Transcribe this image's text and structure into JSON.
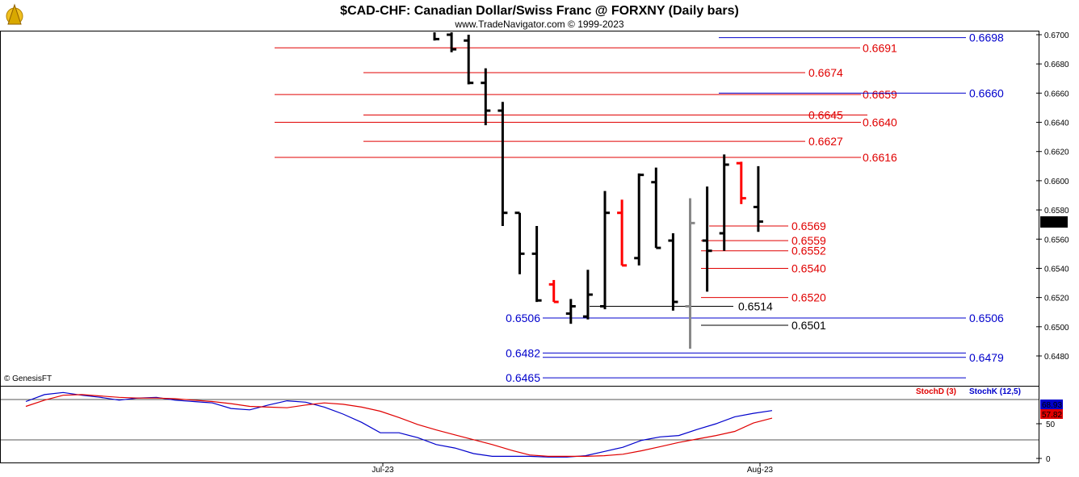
{
  "header": {
    "title": "$CAD-CHF:  Canadian Dollar/Swiss Franc @ FORXNY  (Daily bars)",
    "subtitle": "www.TradeNavigator.com © 1999-2023",
    "watermark": "© GenesisFT"
  },
  "colors": {
    "bull": "#000000",
    "bear": "#ff0000",
    "grey": "#888888",
    "fib_red": "#e00000",
    "fib_blue": "#0000cc",
    "stoch_d": "#e00000",
    "stoch_k": "#0000cc"
  },
  "chart_data": [
    {
      "type": "ohlc",
      "y_ticks": [
        "0.6700",
        "0.6680",
        "0.6660",
        "0.6640",
        "0.6620",
        "0.6600",
        "0.6580",
        "0.6560",
        "0.6540",
        "0.6520",
        "0.6500",
        "0.6480"
      ],
      "ylim": [
        0.6465,
        0.6705
      ],
      "x_labels": [
        {
          "label": "Jul-23",
          "bar": 11
        },
        {
          "label": "Aug-23",
          "bar": 33
        }
      ],
      "last_price": "0.6572",
      "bars": [
        {
          "o": 0.6705,
          "h": 0.671,
          "l": 0.6696,
          "c": 0.6697,
          "color": "bull"
        },
        {
          "o": 0.67,
          "h": 0.6702,
          "l": 0.6688,
          "c": 0.669,
          "color": "bull"
        },
        {
          "o": 0.6696,
          "h": 0.67,
          "l": 0.6666,
          "c": 0.6667,
          "color": "bull"
        },
        {
          "o": 0.6667,
          "h": 0.6677,
          "l": 0.6638,
          "c": 0.6648,
          "color": "bull"
        },
        {
          "o": 0.6648,
          "h": 0.6654,
          "l": 0.6569,
          "c": 0.6578,
          "color": "bull"
        },
        {
          "o": 0.6578,
          "h": 0.6578,
          "l": 0.6536,
          "c": 0.655,
          "color": "bull"
        },
        {
          "o": 0.655,
          "h": 0.6569,
          "l": 0.6517,
          "c": 0.6518,
          "color": "bull"
        },
        {
          "o": 0.6529,
          "h": 0.6532,
          "l": 0.6517,
          "c": 0.6517,
          "color": "bear"
        },
        {
          "o": 0.6509,
          "h": 0.6519,
          "l": 0.6502,
          "c": 0.6514,
          "color": "bull"
        },
        {
          "o": 0.6507,
          "h": 0.6539,
          "l": 0.6505,
          "c": 0.6522,
          "color": "bull"
        },
        {
          "o": 0.6514,
          "h": 0.6593,
          "l": 0.6512,
          "c": 0.6578,
          "color": "bull"
        },
        {
          "o": 0.6578,
          "h": 0.6587,
          "l": 0.6542,
          "c": 0.6542,
          "color": "bear"
        },
        {
          "o": 0.6547,
          "h": 0.6605,
          "l": 0.6542,
          "c": 0.6604,
          "color": "bull"
        },
        {
          "o": 0.6599,
          "h": 0.6609,
          "l": 0.6554,
          "c": 0.6554,
          "color": "bull"
        },
        {
          "o": 0.6559,
          "h": 0.6564,
          "l": 0.6511,
          "c": 0.6517,
          "color": "bull"
        },
        {
          "o": 0.6514,
          "h": 0.6588,
          "l": 0.6485,
          "c": 0.6571,
          "color": "grey"
        },
        {
          "o": 0.6559,
          "h": 0.6596,
          "l": 0.6524,
          "c": 0.6552,
          "color": "bull"
        },
        {
          "o": 0.6564,
          "h": 0.6618,
          "l": 0.6552,
          "c": 0.6611,
          "color": "bull"
        },
        {
          "o": 0.6612,
          "h": 0.6613,
          "l": 0.6584,
          "c": 0.6588,
          "color": "bear"
        },
        {
          "o": 0.6582,
          "h": 0.661,
          "l": 0.6565,
          "c": 0.6572,
          "color": "bull"
        }
      ],
      "red_levels": [
        {
          "label": "0.6691",
          "value": 0.6691
        },
        {
          "label": "0.6674",
          "value": 0.6674
        },
        {
          "label": "0.6659",
          "value": 0.6659
        },
        {
          "label": "0.6645",
          "value": 0.6645
        },
        {
          "label": "0.6640",
          "value": 0.664
        },
        {
          "label": "0.6627",
          "value": 0.6627
        },
        {
          "label": "0.6616",
          "value": 0.6616
        },
        {
          "label": "0.6569",
          "value": 0.6569
        },
        {
          "label": "0.6559",
          "value": 0.6559
        },
        {
          "label": "0.6552",
          "value": 0.6552
        },
        {
          "label": "0.6540",
          "value": 0.654
        },
        {
          "label": "0.6520",
          "value": 0.652
        }
      ],
      "black_levels": [
        {
          "label": "0.6514",
          "value": 0.6514
        },
        {
          "label": "0.6501",
          "value": 0.6501
        }
      ],
      "blue_levels": [
        {
          "label": "0.6698",
          "value": 0.6698
        },
        {
          "label": "0.6660",
          "value": 0.666
        },
        {
          "label": "0.6506",
          "value": 0.6506
        },
        {
          "label": "0.6506",
          "value": 0.6506
        },
        {
          "label": "0.6482",
          "value": 0.6482
        },
        {
          "label": "0.6479",
          "value": 0.6479
        },
        {
          "label": "0.6465",
          "value": 0.6465
        }
      ]
    },
    {
      "type": "line",
      "y_ticks": [
        "50",
        "0"
      ],
      "ylim": [
        0,
        100
      ],
      "legend": [
        "StochD (3)",
        "StochK (12,5)"
      ],
      "last_d": "57.82",
      "last_k": "68.93",
      "series": [
        {
          "name": "StochD (3)",
          "values": [
            75,
            84,
            91,
            92,
            90,
            88,
            87,
            87,
            86,
            84,
            82,
            79,
            75,
            74,
            73,
            77,
            80,
            78,
            74,
            68,
            59,
            49,
            41,
            34,
            27,
            20,
            12,
            5,
            3,
            3,
            3,
            4,
            6,
            11,
            17,
            23,
            28,
            33,
            39,
            51,
            58
          ]
        },
        {
          "name": "StochK (12,5)",
          "values": [
            82,
            92,
            95,
            91,
            88,
            84,
            87,
            88,
            84,
            82,
            80,
            72,
            70,
            77,
            83,
            81,
            74,
            64,
            52,
            37,
            37,
            30,
            20,
            15,
            7,
            3,
            3,
            3,
            2,
            2,
            4,
            10,
            16,
            26,
            31,
            33,
            42,
            50,
            60,
            65,
            69
          ]
        }
      ]
    }
  ]
}
